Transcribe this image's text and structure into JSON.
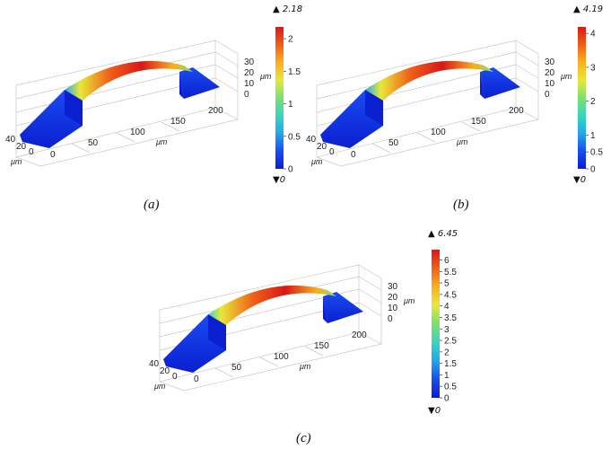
{
  "panels": [
    {
      "caption": "(a)",
      "axes": {
        "unit": "μm",
        "x_ticks": [
          "0",
          "50",
          "100",
          "150",
          "200"
        ],
        "y_ticks": [
          "40",
          "20",
          "0"
        ],
        "z_ticks": [
          "30",
          "20",
          "10",
          "0"
        ]
      },
      "colorbar": {
        "max_label": "2.18",
        "min_label": "0",
        "ticks": [
          "2",
          "1.5",
          "1",
          "0.5",
          "0"
        ],
        "max": 2.18,
        "min": 0
      }
    },
    {
      "caption": "(b)",
      "axes": {
        "unit": "μm",
        "x_ticks": [
          "0",
          "50",
          "100",
          "150",
          "200"
        ],
        "y_ticks": [
          "40",
          "20",
          "0"
        ],
        "z_ticks": [
          "30",
          "20",
          "10",
          "0"
        ]
      },
      "colorbar": {
        "max_label": "4.19",
        "min_label": "0",
        "ticks": [
          "4",
          "3",
          "2",
          "1",
          "0.5",
          "0"
        ],
        "max": 4.19,
        "min": 0
      }
    },
    {
      "caption": "(c)",
      "axes": {
        "unit": "μm",
        "x_ticks": [
          "0",
          "50",
          "100",
          "150",
          "200"
        ],
        "y_ticks": [
          "40",
          "20",
          "0"
        ],
        "z_ticks": [
          "30",
          "20",
          "10",
          "0"
        ]
      },
      "colorbar": {
        "max_label": "6.45",
        "min_label": "0",
        "ticks": [
          "6",
          "5.5",
          "5",
          "4.5",
          "4",
          "3.5",
          "3",
          "2.5",
          "2",
          "1.5",
          "1",
          "0.5",
          "0"
        ],
        "max": 6.45,
        "min": 0
      }
    }
  ],
  "colormap": [
    "#0a1fd0",
    "#1a4cf0",
    "#22a8e8",
    "#37d6c0",
    "#7be070",
    "#e8e838",
    "#f8b020",
    "#f06018",
    "#d81818"
  ]
}
